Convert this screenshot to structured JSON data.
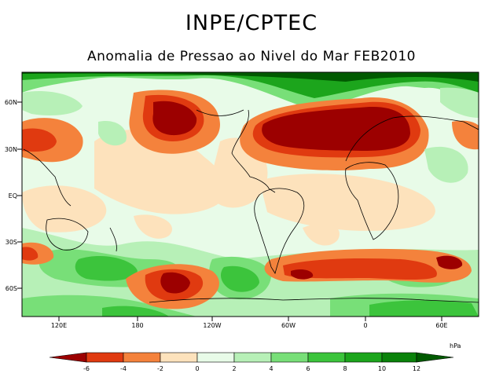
{
  "header": {
    "title": "INPE/CPTEC",
    "subtitle": "Anomalia de Pressao ao Nivel do Mar FEB2010"
  },
  "map": {
    "lat_labels": [
      "60N",
      "30N",
      "EQ",
      "30S",
      "60S"
    ],
    "lon_labels": [
      "120E",
      "180",
      "120W",
      "60W",
      "0",
      "60E"
    ]
  },
  "legend": {
    "unit": "hPa",
    "ticks": [
      "-6",
      "-4",
      "-2",
      "0",
      "2",
      "4",
      "6",
      "8",
      "10",
      "12"
    ],
    "colors": [
      "#9c0000",
      "#e03a10",
      "#f4823c",
      "#fde2bc",
      "#e8fbe8",
      "#b7f0b7",
      "#78df78",
      "#3cc43c",
      "#1ca51c",
      "#0a820a",
      "#005a00"
    ]
  }
}
